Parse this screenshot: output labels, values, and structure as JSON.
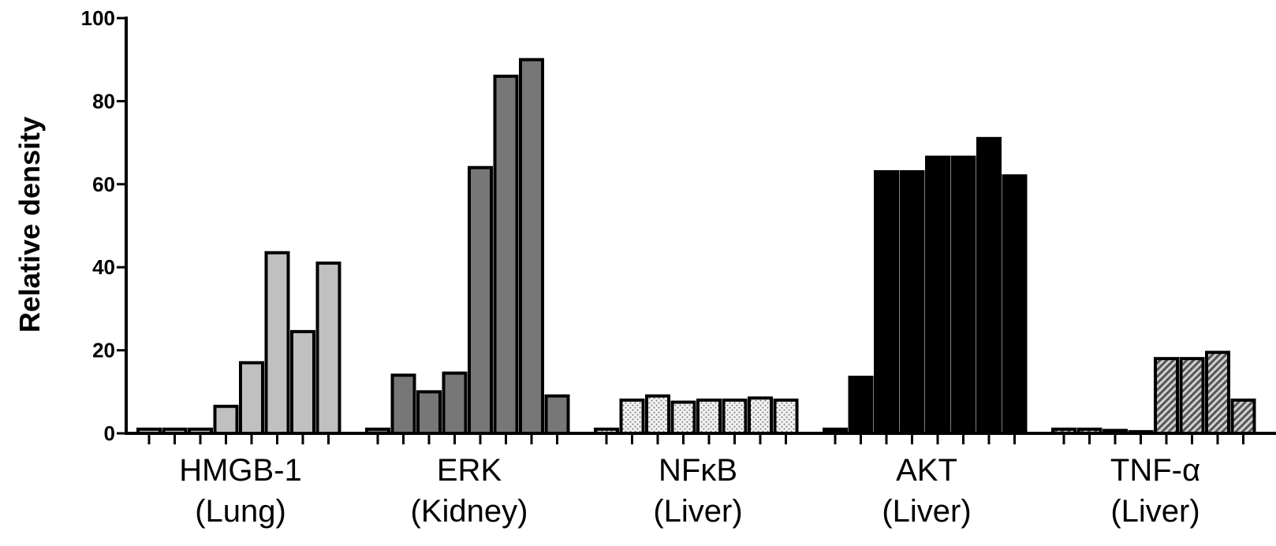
{
  "chart_data": {
    "type": "bar",
    "ylabel": "Relative density",
    "xlabel": "",
    "ylim": [
      0,
      100
    ],
    "yticks": [
      0,
      20,
      40,
      60,
      80,
      100
    ],
    "grid": false,
    "groups": [
      {
        "label": "HMGB-1",
        "sublabel": "(Lung)",
        "fill": "#c0c0c0",
        "pattern": "none",
        "values": [
          1,
          1,
          1,
          6.5,
          17,
          43.5,
          24.5,
          41
        ]
      },
      {
        "label": "ERK",
        "sublabel": "(Kidney)",
        "fill": "#777777",
        "pattern": "none",
        "values": [
          1,
          14,
          10,
          14.5,
          64,
          86,
          90,
          9
        ]
      },
      {
        "label": "NFκB",
        "sublabel": "(Liver)",
        "fill": "#ececec",
        "pattern": "dots",
        "values": [
          1,
          8,
          9,
          7.5,
          8,
          8,
          8.5,
          8
        ]
      },
      {
        "label": "AKT",
        "sublabel": "(Liver)",
        "fill": "#000000",
        "pattern": "none",
        "values": [
          1,
          13.5,
          63,
          63,
          66.5,
          66.5,
          71,
          62
        ]
      },
      {
        "label": "TNF-α",
        "sublabel": "(Liver)",
        "fill": "#aaaaaa",
        "pattern": "hatch",
        "values": [
          1,
          1,
          0.7,
          0.4,
          18,
          18,
          19.5,
          8
        ]
      }
    ]
  }
}
